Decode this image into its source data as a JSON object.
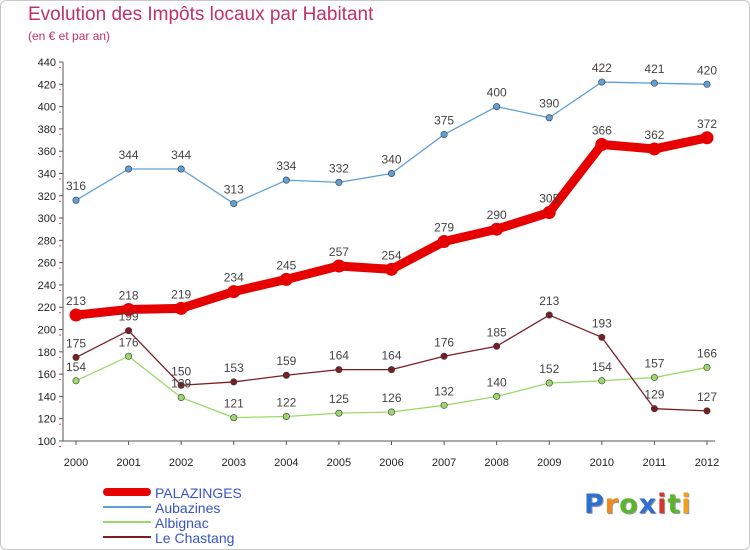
{
  "title": "Evolution des Impôts locaux par Habitant",
  "subtitle": "(en € et par an)",
  "logo": {
    "letters": [
      "P",
      "r",
      "o",
      "x",
      "i",
      "t",
      "i"
    ],
    "colors": [
      "#2f6fd1",
      "#f08a1c",
      "#58b52c",
      "#2f6fd1",
      "#d13a2a",
      "#58b52c",
      "#f0a21c"
    ]
  },
  "chart_data": {
    "type": "line",
    "title": "Evolution des Impôts locaux par Habitant",
    "subtitle": "(en € et par an)",
    "x": [
      "2000",
      "2001",
      "2002",
      "2003",
      "2004",
      "2005",
      "2006",
      "2007",
      "2008",
      "2009",
      "2010",
      "2011",
      "2012"
    ],
    "ylim": [
      100,
      440
    ],
    "yticks": [
      100,
      120,
      140,
      160,
      180,
      200,
      220,
      240,
      260,
      280,
      300,
      320,
      340,
      360,
      380,
      400,
      420,
      440
    ],
    "grid": false,
    "legend_position": "bottom-left",
    "series": [
      {
        "name": "PALAZINGES",
        "color": "#e60000",
        "values": [
          213,
          218,
          219,
          234,
          245,
          257,
          254,
          279,
          290,
          305,
          366,
          362,
          372
        ]
      },
      {
        "name": "Aubazines",
        "color": "#5f9fd8",
        "values": [
          316,
          344,
          344,
          313,
          334,
          332,
          340,
          375,
          400,
          390,
          422,
          421,
          420
        ]
      },
      {
        "name": "Albignac",
        "color": "#9ad86b",
        "values": [
          154,
          176,
          139,
          121,
          122,
          125,
          126,
          132,
          140,
          152,
          154,
          157,
          166
        ]
      },
      {
        "name": "Le Chastang",
        "color": "#7a1e24",
        "values": [
          175,
          199,
          150,
          153,
          159,
          164,
          164,
          176,
          185,
          213,
          193,
          129,
          127
        ]
      }
    ]
  }
}
